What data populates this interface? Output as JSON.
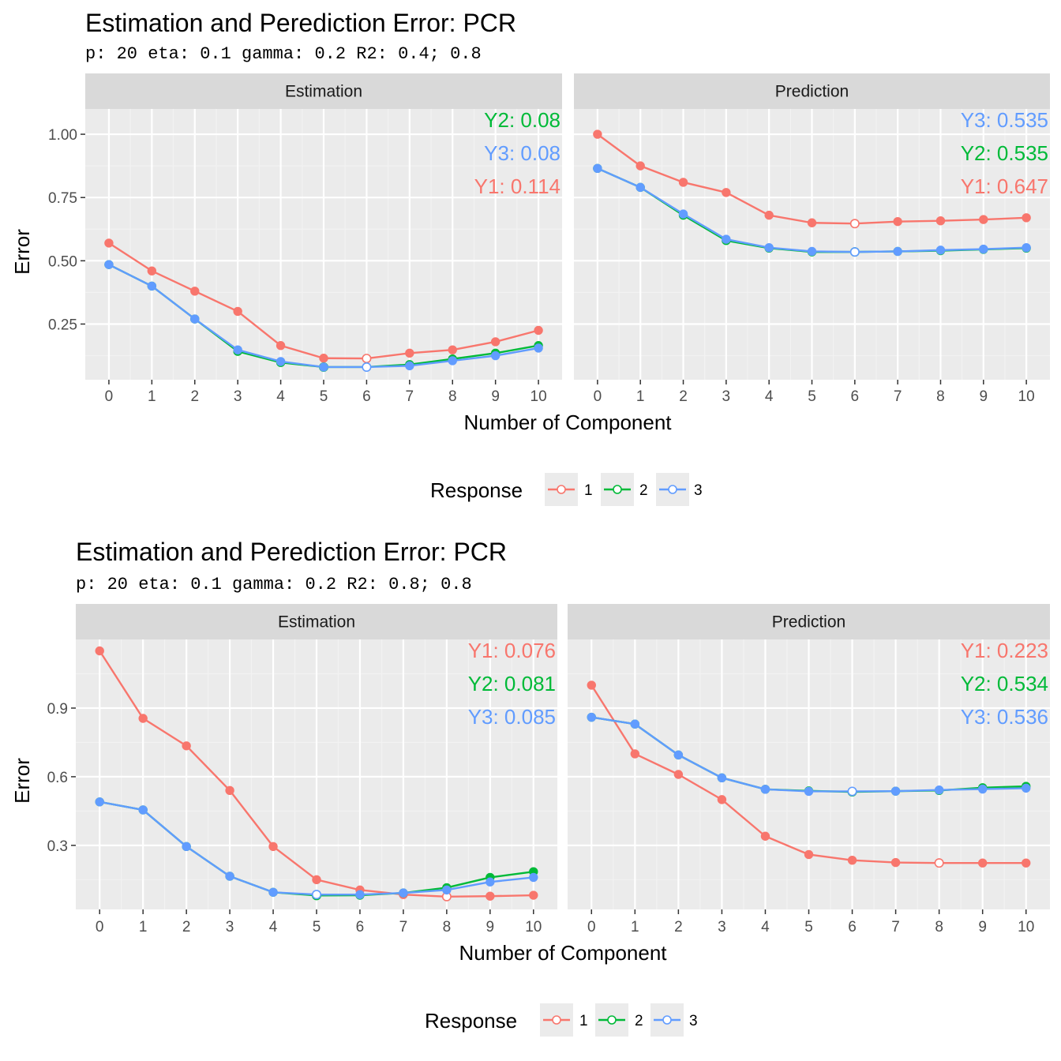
{
  "colors": {
    "response_1": "#F8766D",
    "response_2": "#00BA38",
    "response_3": "#619CFF",
    "panel_bg": "#EBEBEB",
    "strip_bg": "#D9D9D9"
  },
  "chart_data": [
    {
      "type": "line",
      "title": "Estimation and Perediction Error: PCR",
      "subtitle": "p: 20 eta: 0.1 gamma: 0.2 R2: 0.4; 0.8",
      "xlabel": "Number of Component",
      "ylabel": "Error",
      "x": [
        0,
        1,
        2,
        3,
        4,
        5,
        6,
        7,
        8,
        9,
        10
      ],
      "x_ticks": [
        "0",
        "1",
        "2",
        "3",
        "4",
        "5",
        "6",
        "7",
        "8",
        "9",
        "10"
      ],
      "ylim": [
        0.03,
        1.1
      ],
      "y_ticks": [
        "0.25",
        "0.50",
        "0.75",
        "1.00"
      ],
      "y_tick_values": [
        0.25,
        0.5,
        0.75,
        1.0
      ],
      "legend": {
        "title": "Response",
        "entries": [
          "1",
          "2",
          "3"
        ],
        "position": "bottom"
      },
      "grid": true,
      "facets": [
        {
          "label": "Estimation",
          "series": [
            {
              "name": "1",
              "values": [
                0.57,
                0.46,
                0.38,
                0.3,
                0.165,
                0.115,
                0.114,
                0.135,
                0.148,
                0.18,
                0.225
              ],
              "min_index": 6
            },
            {
              "name": "2",
              "values": [
                0.485,
                0.4,
                0.27,
                0.142,
                0.098,
                0.08,
                0.08,
                0.09,
                0.112,
                0.135,
                0.165
              ],
              "min_index": 5
            },
            {
              "name": "3",
              "values": [
                0.485,
                0.4,
                0.27,
                0.148,
                0.102,
                0.08,
                0.08,
                0.085,
                0.105,
                0.125,
                0.155
              ],
              "min_index": 6
            }
          ],
          "annotations": [
            {
              "text": "Y2: 0.08",
              "series": "2"
            },
            {
              "text": "Y3: 0.08",
              "series": "3"
            },
            {
              "text": "Y1: 0.114",
              "series": "1"
            }
          ]
        },
        {
          "label": "Prediction",
          "series": [
            {
              "name": "1",
              "values": [
                1.0,
                0.875,
                0.81,
                0.77,
                0.68,
                0.65,
                0.647,
                0.655,
                0.658,
                0.663,
                0.67
              ],
              "min_index": 6
            },
            {
              "name": "2",
              "values": [
                0.865,
                0.79,
                0.68,
                0.58,
                0.55,
                0.535,
                0.535,
                0.537,
                0.54,
                0.545,
                0.55
              ],
              "min_index": 6
            },
            {
              "name": "3",
              "values": [
                0.865,
                0.79,
                0.685,
                0.585,
                0.552,
                0.537,
                0.535,
                0.537,
                0.542,
                0.546,
                0.552
              ],
              "min_index": 6
            }
          ],
          "annotations": [
            {
              "text": "Y3: 0.535",
              "series": "3"
            },
            {
              "text": "Y2: 0.535",
              "series": "2"
            },
            {
              "text": "Y1: 0.647",
              "series": "1"
            }
          ]
        }
      ]
    },
    {
      "type": "line",
      "title": "Estimation and Perediction Error: PCR",
      "subtitle": "p: 20 eta: 0.1 gamma: 0.2 R2: 0.8; 0.8",
      "xlabel": "Number of Component",
      "ylabel": "Error",
      "x": [
        0,
        1,
        2,
        3,
        4,
        5,
        6,
        7,
        8,
        9,
        10
      ],
      "x_ticks": [
        "0",
        "1",
        "2",
        "3",
        "4",
        "5",
        "6",
        "7",
        "8",
        "9",
        "10"
      ],
      "ylim": [
        0.02,
        1.2
      ],
      "y_ticks": [
        "0.3",
        "0.6",
        "0.9"
      ],
      "y_tick_values": [
        0.3,
        0.6,
        0.9
      ],
      "legend": {
        "title": "Response",
        "entries": [
          "1",
          "2",
          "3"
        ],
        "position": "bottom"
      },
      "grid": true,
      "facets": [
        {
          "label": "Estimation",
          "series": [
            {
              "name": "1",
              "values": [
                1.15,
                0.855,
                0.735,
                0.54,
                0.295,
                0.15,
                0.105,
                0.085,
                0.076,
                0.078,
                0.082
              ],
              "min_index": 8
            },
            {
              "name": "2",
              "values": [
                0.49,
                0.455,
                0.295,
                0.165,
                0.095,
                0.081,
                0.082,
                0.092,
                0.115,
                0.16,
                0.185
              ],
              "min_index": 5
            },
            {
              "name": "3",
              "values": [
                0.49,
                0.455,
                0.295,
                0.165,
                0.095,
                0.085,
                0.085,
                0.092,
                0.105,
                0.14,
                0.16
              ],
              "min_index": 5
            }
          ],
          "annotations": [
            {
              "text": "Y1: 0.076",
              "series": "1"
            },
            {
              "text": "Y2: 0.081",
              "series": "2"
            },
            {
              "text": "Y3: 0.085",
              "series": "3"
            }
          ]
        },
        {
          "label": "Prediction",
          "series": [
            {
              "name": "1",
              "values": [
                1.0,
                0.7,
                0.61,
                0.5,
                0.34,
                0.26,
                0.235,
                0.225,
                0.223,
                0.223,
                0.223
              ],
              "min_index": 8
            },
            {
              "name": "2",
              "values": [
                0.86,
                0.83,
                0.695,
                0.595,
                0.545,
                0.538,
                0.534,
                0.537,
                0.54,
                0.552,
                0.558
              ],
              "min_index": 6
            },
            {
              "name": "3",
              "values": [
                0.86,
                0.83,
                0.695,
                0.595,
                0.545,
                0.536,
                0.536,
                0.537,
                0.542,
                0.546,
                0.55
              ],
              "min_index": 6
            }
          ],
          "annotations": [
            {
              "text": "Y1: 0.223",
              "series": "1"
            },
            {
              "text": "Y2: 0.534",
              "series": "2"
            },
            {
              "text": "Y3: 0.536",
              "series": "3"
            }
          ]
        }
      ]
    }
  ]
}
